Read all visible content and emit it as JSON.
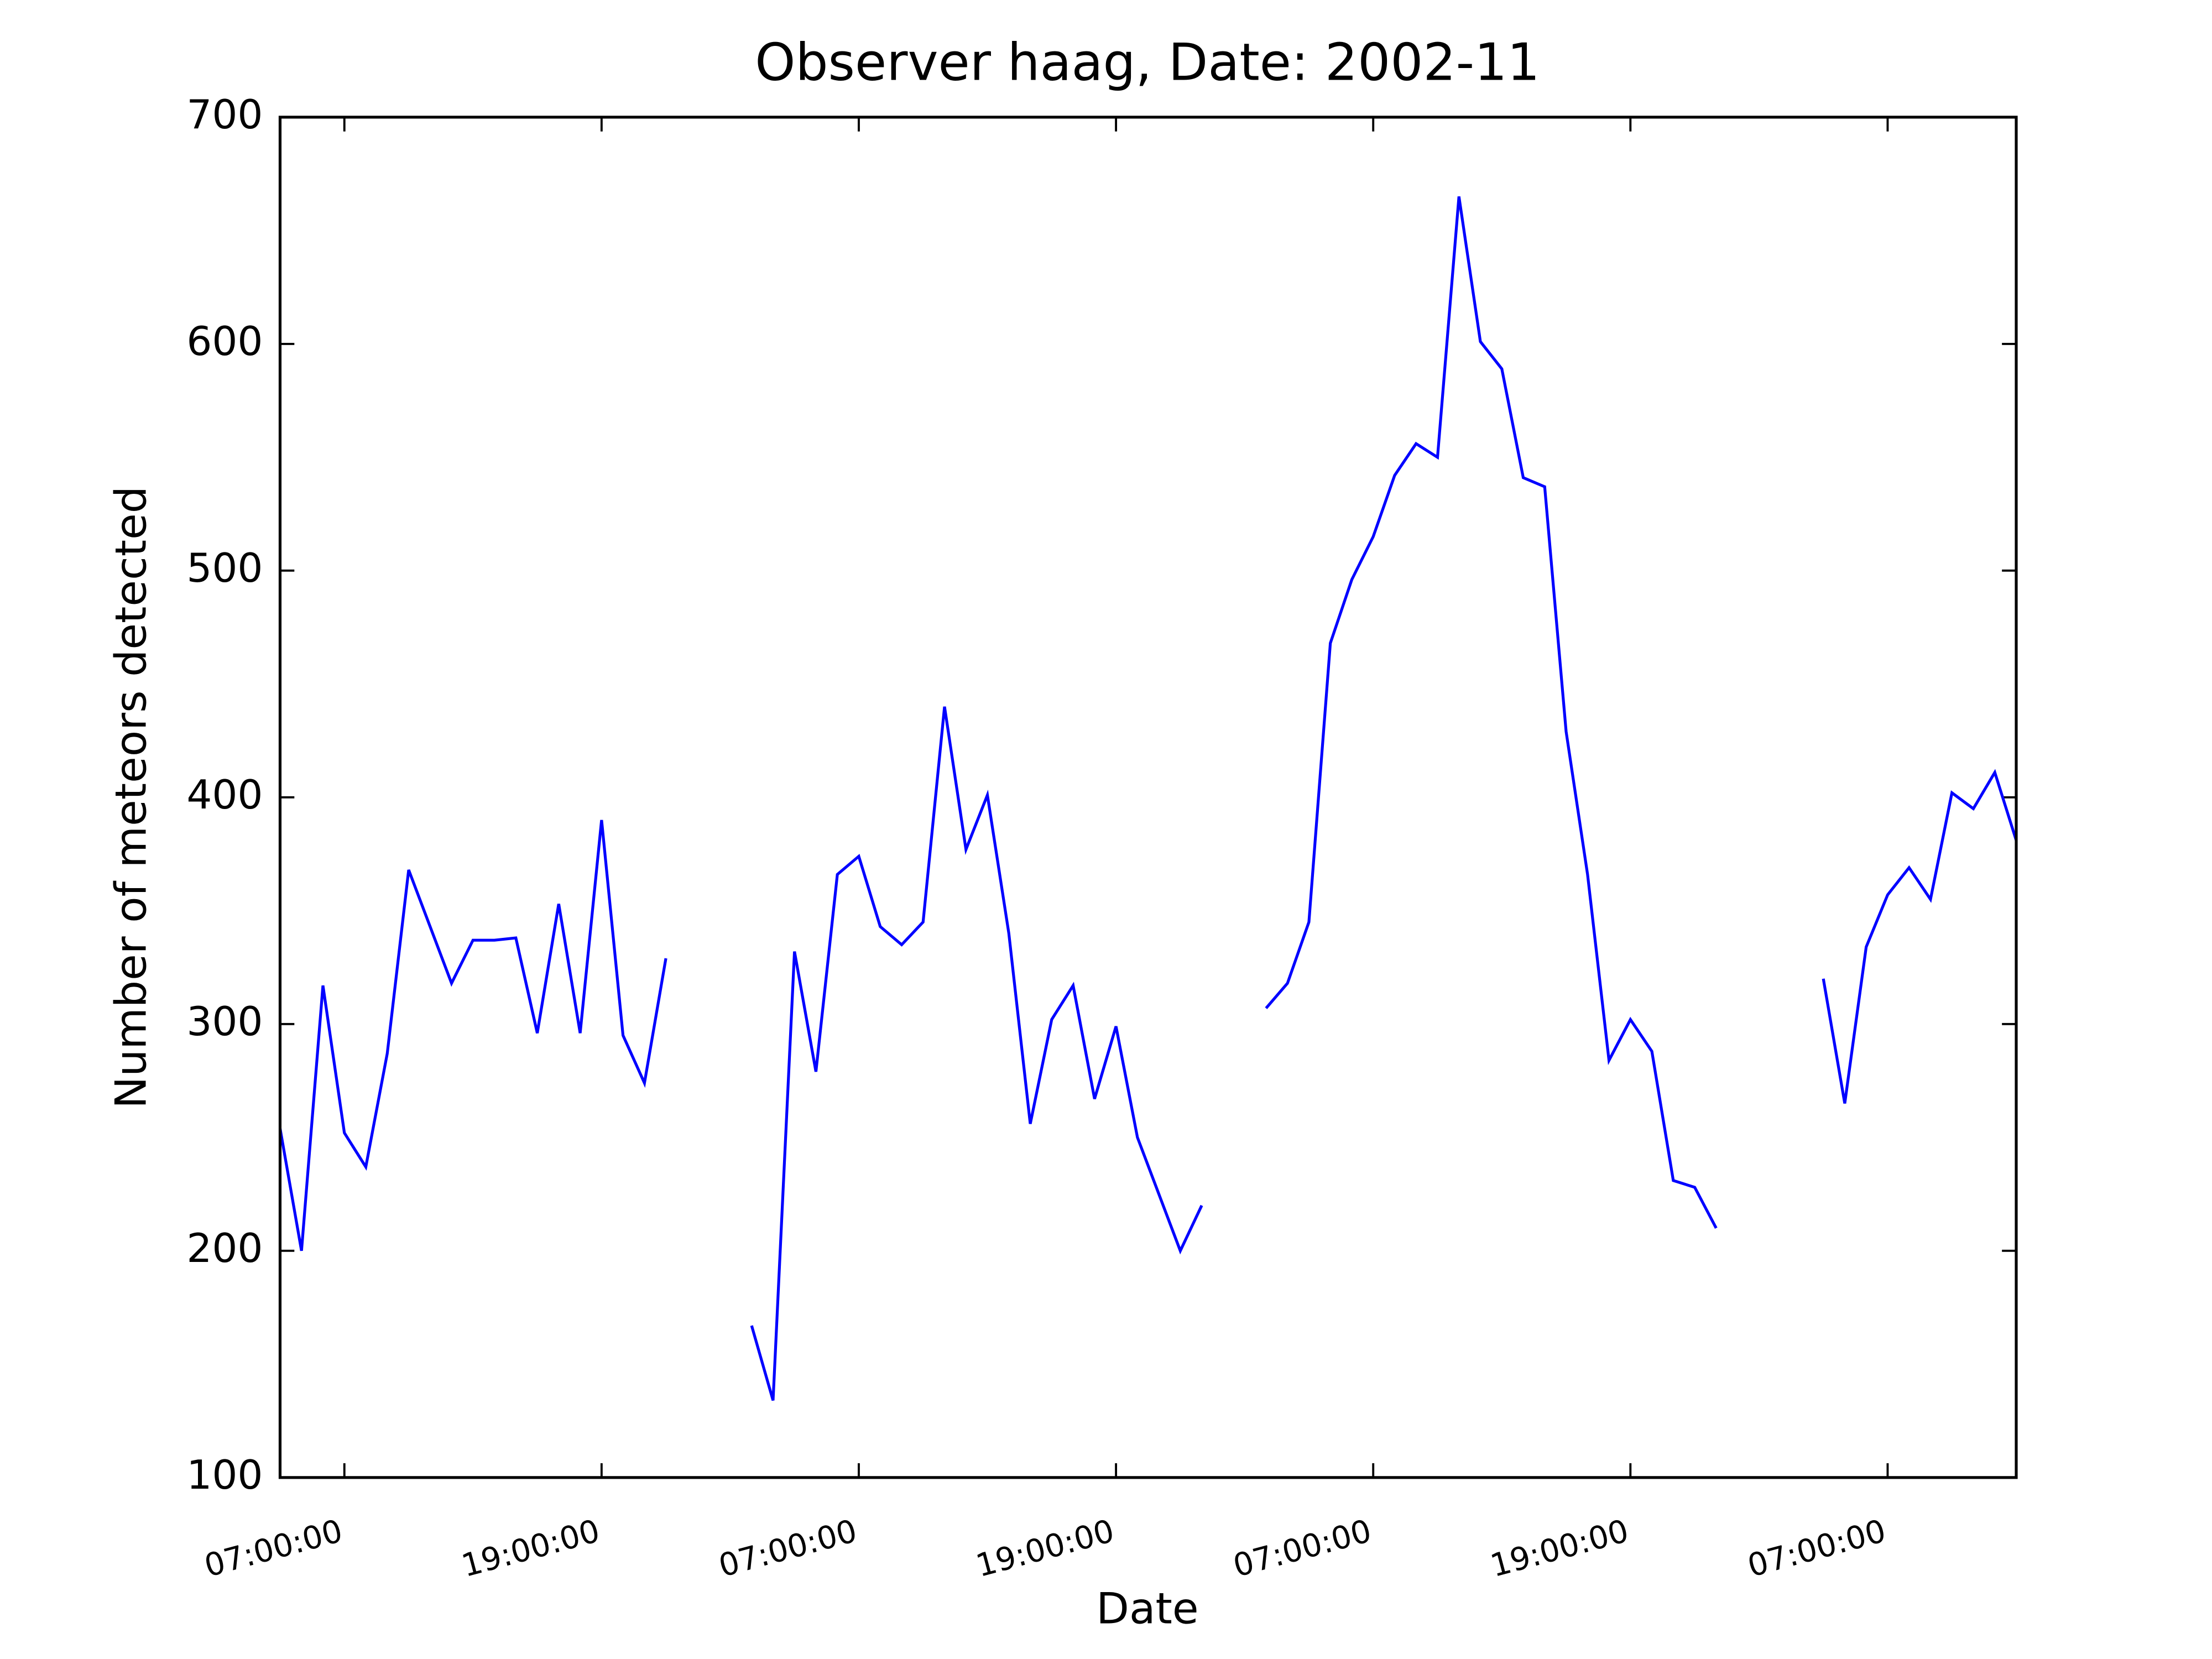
{
  "chart_data": {
    "type": "line",
    "title": "Observer haag, Date: 2002-11",
    "xlabel": "Date",
    "ylabel": "Number of meteors detected",
    "x": [
      0,
      1,
      2,
      3,
      4,
      5,
      6,
      7,
      8,
      9,
      10,
      11,
      12,
      13,
      14,
      15,
      16,
      17,
      18,
      19,
      20,
      21,
      22,
      23,
      24,
      25,
      26,
      27,
      28,
      29,
      30,
      31,
      32,
      33,
      34,
      35,
      36,
      37,
      38,
      39,
      40,
      41,
      42,
      43,
      44,
      45,
      46,
      47,
      48,
      49,
      50,
      51,
      52,
      53,
      54,
      55,
      56,
      57,
      58,
      59,
      60,
      61,
      62,
      63,
      64,
      65,
      66,
      67,
      68,
      69,
      70,
      71,
      72,
      73,
      74,
      75,
      76,
      77,
      78,
      79,
      80,
      81
    ],
    "series": [
      {
        "name": "haag",
        "color": "#0000ff",
        "values": [
          254,
          200,
          317,
          252,
          237,
          287,
          368,
          343,
          318,
          337,
          337,
          338,
          296,
          353,
          296,
          390,
          295,
          274,
          329,
          null,
          null,
          null,
          167,
          134,
          332,
          279,
          366,
          374,
          343,
          335,
          345,
          440,
          377,
          401,
          340,
          256,
          302,
          317,
          267,
          299,
          250,
          225,
          200,
          220,
          null,
          null,
          307,
          318,
          345,
          468,
          496,
          515,
          542,
          556,
          550,
          665,
          601,
          589,
          541,
          537,
          429,
          366,
          284,
          302,
          288,
          231,
          228,
          210,
          null,
          null,
          null,
          null,
          320,
          265,
          334,
          357,
          369,
          355,
          402,
          395,
          411,
          381
        ]
      }
    ],
    "xlim": [
      0,
      81
    ],
    "xticks": [
      {
        "value": 3,
        "label": "07:00:00"
      },
      {
        "value": 15,
        "label": "19:00:00"
      },
      {
        "value": 27,
        "label": "07:00:00"
      },
      {
        "value": 39,
        "label": "19:00:00"
      },
      {
        "value": 51,
        "label": "07:00:00"
      },
      {
        "value": 63,
        "label": "19:00:00"
      },
      {
        "value": 75,
        "label": "07:00:00"
      }
    ],
    "ylim": [
      100,
      700
    ],
    "yticks": [
      100,
      200,
      300,
      400,
      500,
      600,
      700
    ],
    "grid": false
  }
}
